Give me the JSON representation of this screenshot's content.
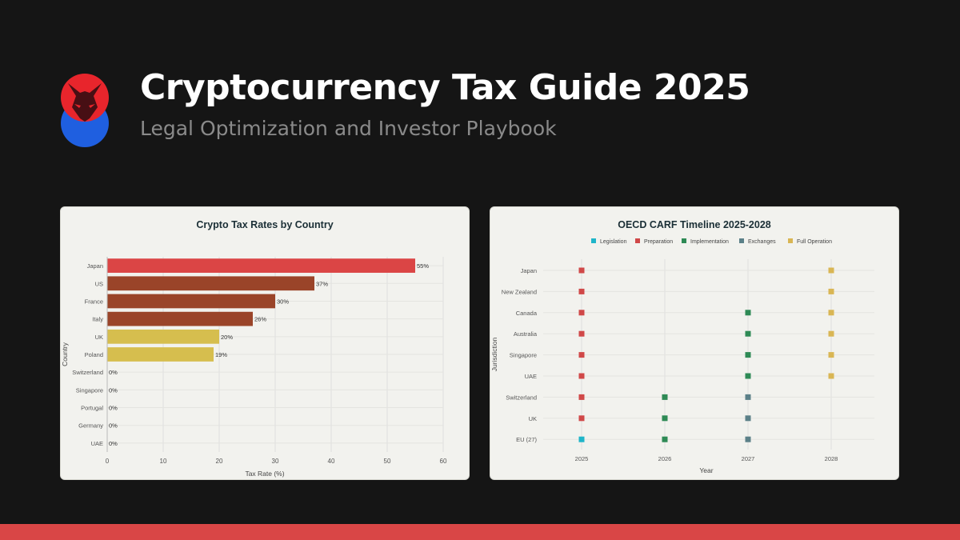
{
  "header": {
    "title": "Cryptocurrency Tax Guide 2025",
    "subtitle": "Legal Optimization and Investor Playbook"
  },
  "colors": {
    "background": "#151515",
    "accent": "#d94646",
    "logo_top": "#e8252c",
    "logo_bottom": "#1f5fe0"
  },
  "chart_data": [
    {
      "type": "bar",
      "orientation": "horizontal",
      "title": "Crypto Tax Rates by Country",
      "xlabel": "Tax Rate (%)",
      "ylabel": "Country",
      "xlim": [
        0,
        60
      ],
      "xticks": [
        0,
        10,
        20,
        30,
        40,
        50,
        60
      ],
      "grid": true,
      "categories": [
        "Japan",
        "US",
        "France",
        "Italy",
        "UK",
        "Poland",
        "Switzerland",
        "Singapore",
        "Portugal",
        "Germany",
        "UAE"
      ],
      "values": [
        55,
        37,
        30,
        26,
        20,
        19,
        0,
        0,
        0,
        0,
        0
      ],
      "data_labels": [
        "55%",
        "37%",
        "30%",
        "26%",
        "20%",
        "19%",
        "0%",
        "0%",
        "0%",
        "0%",
        "0%"
      ],
      "colors": [
        "#db4545",
        "#9a4429",
        "#9a4429",
        "#9a4429",
        "#d6be4e",
        "#d6be4e",
        "#4c9b5c",
        "#4c9b5c",
        "#4c9b5c",
        "#4c9b5c",
        "#4c9b5c"
      ]
    },
    {
      "type": "scatter",
      "title": "OECD CARF Timeline 2025-2028",
      "xlabel": "Year",
      "ylabel": "Jurisdiction",
      "legend_position": "top",
      "grid": true,
      "x": [
        "2025",
        "2026",
        "2027",
        "2028"
      ],
      "categories": [
        "Japan",
        "New Zealand",
        "Canada",
        "Australia",
        "Singapore",
        "UAE",
        "Switzerland",
        "UK",
        "EU (27)"
      ],
      "series": [
        {
          "name": "Legislation",
          "color": "#1fb5c9",
          "points": [
            {
              "x": "2025",
              "y": "EU (27)"
            }
          ]
        },
        {
          "name": "Preparation",
          "color": "#d04848",
          "points": [
            {
              "x": "2025",
              "y": "Japan"
            },
            {
              "x": "2025",
              "y": "New Zealand"
            },
            {
              "x": "2025",
              "y": "Canada"
            },
            {
              "x": "2025",
              "y": "Australia"
            },
            {
              "x": "2025",
              "y": "Singapore"
            },
            {
              "x": "2025",
              "y": "UAE"
            },
            {
              "x": "2025",
              "y": "Switzerland"
            },
            {
              "x": "2025",
              "y": "UK"
            }
          ]
        },
        {
          "name": "Implementation",
          "color": "#2e8a55",
          "points": [
            {
              "x": "2027",
              "y": "Canada"
            },
            {
              "x": "2027",
              "y": "Australia"
            },
            {
              "x": "2027",
              "y": "Singapore"
            },
            {
              "x": "2027",
              "y": "UAE"
            },
            {
              "x": "2026",
              "y": "Switzerland"
            },
            {
              "x": "2026",
              "y": "UK"
            },
            {
              "x": "2026",
              "y": "EU (27)"
            }
          ]
        },
        {
          "name": "Exchanges",
          "color": "#5b8088",
          "points": [
            {
              "x": "2027",
              "y": "Switzerland"
            },
            {
              "x": "2027",
              "y": "UK"
            },
            {
              "x": "2027",
              "y": "EU (27)"
            }
          ]
        },
        {
          "name": "Full Operation",
          "color": "#d9b654",
          "points": [
            {
              "x": "2028",
              "y": "Japan"
            },
            {
              "x": "2028",
              "y": "New Zealand"
            },
            {
              "x": "2028",
              "y": "Canada"
            },
            {
              "x": "2028",
              "y": "Australia"
            },
            {
              "x": "2028",
              "y": "Singapore"
            },
            {
              "x": "2028",
              "y": "UAE"
            }
          ]
        }
      ]
    }
  ]
}
